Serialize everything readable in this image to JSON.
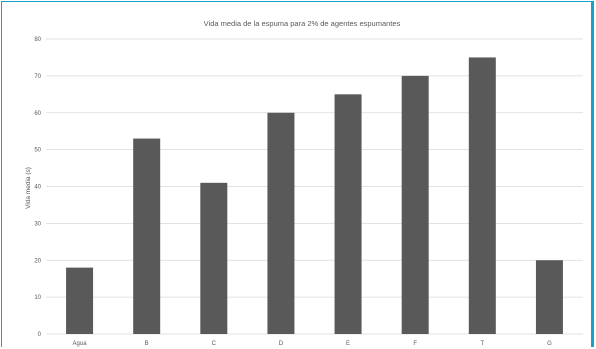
{
  "chart_data": {
    "type": "bar",
    "title": "Vida media de la espuma para 2% de agentes espumantes",
    "xlabel": "",
    "ylabel": "Vida media (s)",
    "categories": [
      "Agua",
      "B",
      "C",
      "D",
      "E",
      "F",
      "T",
      "G"
    ],
    "values": [
      18,
      53,
      41,
      60,
      65,
      70,
      75,
      20
    ],
    "ylim": [
      0,
      80
    ],
    "yticks": [
      "0",
      "10",
      "20",
      "30",
      "40",
      "50",
      "60",
      "70",
      "80"
    ],
    "grid": true,
    "legend": "none",
    "bar_color": "#595959",
    "grid_color": "#d9d9d9",
    "frame_color": "#17a2c8"
  }
}
